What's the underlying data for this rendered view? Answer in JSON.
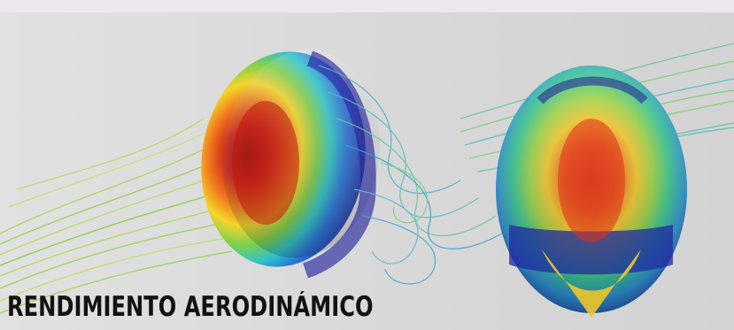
{
  "image": {
    "description_label": "cfd-helmet-aerodynamics-visualization",
    "caption": "RENDIMIENTO AERODINÁMICO",
    "colors": {
      "background": "#d9d9d9",
      "top_strip": "#ece8ee",
      "caption_text": "#121212",
      "pressure_high": "#c81e12",
      "pressure_mid": "#f2d223",
      "pressure_low": "#2f2fa8",
      "streamline_green": "#7bcf5a",
      "streamline_blue": "#3aa0c8"
    }
  }
}
